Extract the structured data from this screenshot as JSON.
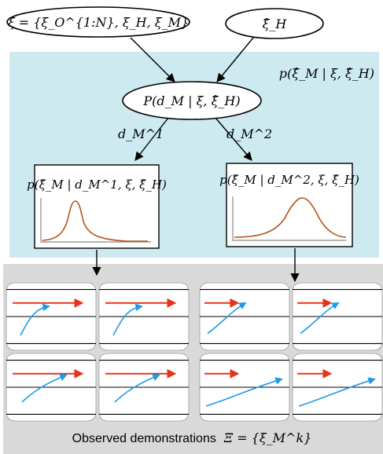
{
  "colors": {
    "panel_background": "#cdeaf0",
    "observation_background": "#d9d9d9",
    "distribution_curve": "#b5541c",
    "human_vehicle_arrow": "#e8321b",
    "robot_trajectory": "#1f9be5"
  },
  "nodes": {
    "xi_node": "ξ = {ξ_O^{1:N}, ξ_H, ξ_M}",
    "xi_h_hat_node": "ξ̂_H",
    "panel_label": "p(ξ̂_M | ξ, ξ̂_H)",
    "p_dm_node": "P(d_M | ξ, ξ̂_H)"
  },
  "edges": {
    "d1": "d_M^1",
    "d2": "d_M^2"
  },
  "distributions": {
    "left_title": "p(ξ̂_M | d_M^1, ξ, ξ̂_H)",
    "right_title": "p(ξ̂_M | d_M^2, ξ, ξ̂_H)"
  },
  "caption": {
    "text": "Observed demonstrations",
    "math": "Ξ = {ξ_M^k}"
  }
}
